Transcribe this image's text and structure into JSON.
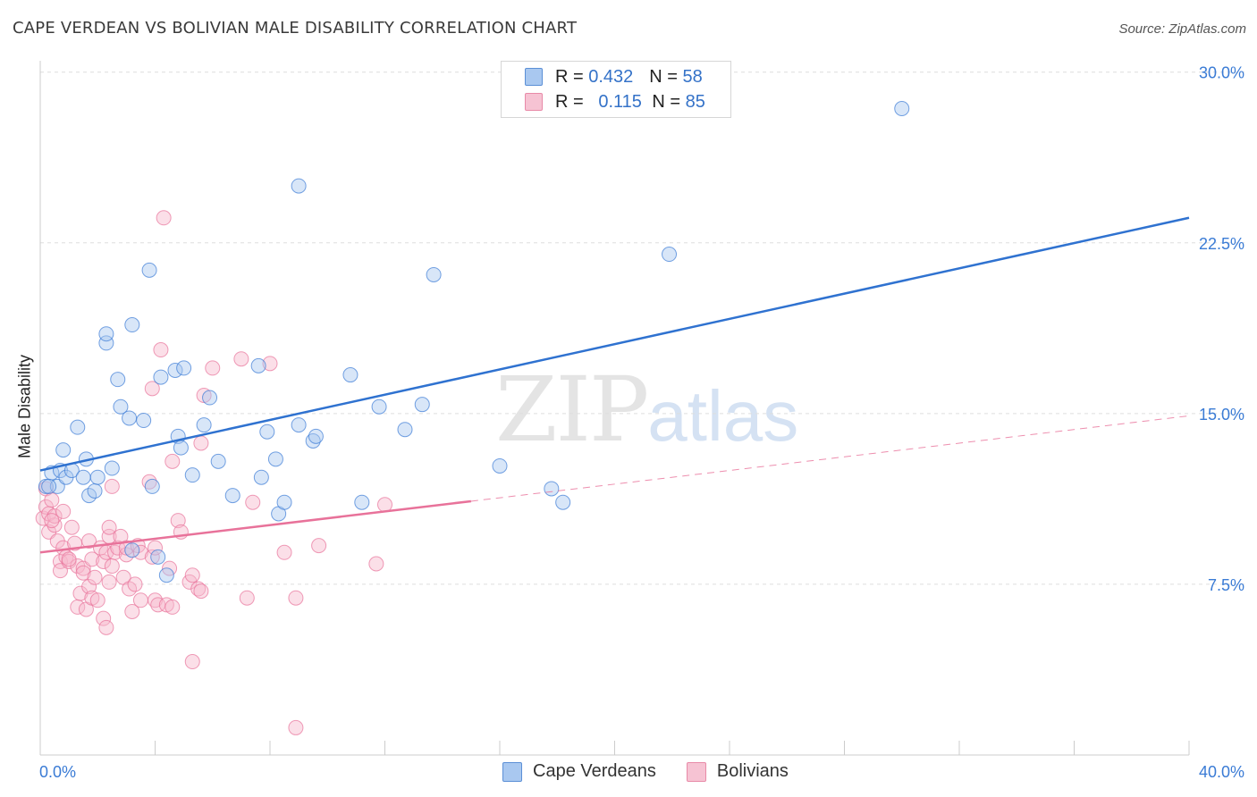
{
  "header": {
    "title": "CAPE VERDEAN VS BOLIVIAN MALE DISABILITY CORRELATION CHART",
    "source": "Source: ZipAtlas.com"
  },
  "watermark": {
    "zip": "ZIP",
    "atlas": "atlas"
  },
  "legend": {
    "r_label": "R =",
    "n_label": "N =",
    "series": [
      {
        "name": "Cape Verdeans",
        "r": "0.432",
        "n": "58",
        "color": "#a9c8f0"
      },
      {
        "name": "Bolivians",
        "r": "0.115",
        "n": "85",
        "color": "#f6b8cb"
      }
    ]
  },
  "chart_data": {
    "type": "scatter",
    "title": "CAPE VERDEAN VS BOLIVIAN MALE DISABILITY CORRELATION CHART",
    "xlabel": "",
    "ylabel": "Male Disability",
    "xlim": [
      0,
      40
    ],
    "ylim": [
      0,
      30.5
    ],
    "x_tick_labels": [
      "0.0%",
      "40.0%"
    ],
    "y_ticks": [
      7.5,
      15.0,
      22.5,
      30.0
    ],
    "y_tick_labels": [
      "7.5%",
      "15.0%",
      "22.5%",
      "30.0%"
    ],
    "grid": true,
    "series": [
      {
        "name": "Cape Verdeans",
        "color": "#3a7bd5",
        "fill": "#a9c8f0",
        "trend": {
          "x": [
            0,
            40
          ],
          "y": [
            12.5,
            23.6
          ],
          "dashed_from": null
        },
        "points": [
          [
            0.2,
            11.8
          ],
          [
            0.4,
            12.4
          ],
          [
            0.6,
            11.8
          ],
          [
            0.7,
            12.5
          ],
          [
            0.8,
            13.4
          ],
          [
            0.9,
            12.2
          ],
          [
            1.1,
            12.5
          ],
          [
            1.3,
            14.4
          ],
          [
            1.5,
            12.2
          ],
          [
            1.6,
            13.0
          ],
          [
            1.7,
            11.4
          ],
          [
            1.9,
            11.6
          ],
          [
            2.0,
            12.2
          ],
          [
            2.3,
            18.1
          ],
          [
            2.3,
            18.5
          ],
          [
            2.5,
            12.6
          ],
          [
            2.7,
            16.5
          ],
          [
            2.8,
            15.3
          ],
          [
            3.1,
            14.8
          ],
          [
            3.2,
            18.9
          ],
          [
            3.2,
            9.0
          ],
          [
            3.6,
            14.7
          ],
          [
            3.8,
            21.3
          ],
          [
            3.9,
            11.8
          ],
          [
            4.1,
            8.7
          ],
          [
            4.2,
            16.6
          ],
          [
            4.4,
            7.9
          ],
          [
            4.7,
            16.9
          ],
          [
            4.8,
            14.0
          ],
          [
            4.9,
            13.5
          ],
          [
            5.0,
            17.0
          ],
          [
            5.3,
            12.3
          ],
          [
            5.7,
            14.5
          ],
          [
            5.9,
            15.7
          ],
          [
            6.2,
            12.9
          ],
          [
            6.7,
            11.4
          ],
          [
            7.6,
            17.1
          ],
          [
            7.7,
            12.2
          ],
          [
            7.9,
            14.2
          ],
          [
            8.2,
            13.0
          ],
          [
            8.3,
            10.6
          ],
          [
            8.5,
            11.1
          ],
          [
            9.0,
            14.5
          ],
          [
            9.0,
            25.0
          ],
          [
            9.5,
            13.8
          ],
          [
            9.6,
            14.0
          ],
          [
            10.8,
            16.7
          ],
          [
            11.2,
            11.1
          ],
          [
            11.8,
            15.3
          ],
          [
            12.7,
            14.3
          ],
          [
            13.3,
            15.4
          ],
          [
            13.7,
            21.1
          ],
          [
            16.0,
            12.7
          ],
          [
            17.8,
            11.7
          ],
          [
            18.2,
            11.1
          ],
          [
            21.9,
            22.0
          ],
          [
            30.0,
            28.4
          ],
          [
            0.3,
            11.8
          ]
        ]
      },
      {
        "name": "Bolivians",
        "color": "#e8729a",
        "fill": "#f6b8cb",
        "trend": {
          "x": [
            0,
            40
          ],
          "y": [
            8.9,
            14.9
          ],
          "solid_until": 15
        },
        "points": [
          [
            0.1,
            10.4
          ],
          [
            0.2,
            10.9
          ],
          [
            0.2,
            11.7
          ],
          [
            0.3,
            10.6
          ],
          [
            0.3,
            9.8
          ],
          [
            0.4,
            11.2
          ],
          [
            0.5,
            10.1
          ],
          [
            0.5,
            10.5
          ],
          [
            0.6,
            9.4
          ],
          [
            0.7,
            8.5
          ],
          [
            0.7,
            8.1
          ],
          [
            0.8,
            9.1
          ],
          [
            0.8,
            10.7
          ],
          [
            0.9,
            8.7
          ],
          [
            1.0,
            8.5
          ],
          [
            1.1,
            10.0
          ],
          [
            1.2,
            9.3
          ],
          [
            1.3,
            8.3
          ],
          [
            1.3,
            6.5
          ],
          [
            1.4,
            7.1
          ],
          [
            1.5,
            8.2
          ],
          [
            1.5,
            8.0
          ],
          [
            1.6,
            6.4
          ],
          [
            1.7,
            9.4
          ],
          [
            1.7,
            7.4
          ],
          [
            1.8,
            6.9
          ],
          [
            1.8,
            8.6
          ],
          [
            1.9,
            7.8
          ],
          [
            2.0,
            6.8
          ],
          [
            2.1,
            9.1
          ],
          [
            2.2,
            8.5
          ],
          [
            2.2,
            6.0
          ],
          [
            2.3,
            8.9
          ],
          [
            2.3,
            5.6
          ],
          [
            2.4,
            7.6
          ],
          [
            2.4,
            9.6
          ],
          [
            2.4,
            10.0
          ],
          [
            2.5,
            8.3
          ],
          [
            2.5,
            11.8
          ],
          [
            2.6,
            8.9
          ],
          [
            2.7,
            9.1
          ],
          [
            2.8,
            9.6
          ],
          [
            2.9,
            7.8
          ],
          [
            3.0,
            8.8
          ],
          [
            3.0,
            9.1
          ],
          [
            3.1,
            7.3
          ],
          [
            3.2,
            6.3
          ],
          [
            3.3,
            7.5
          ],
          [
            3.4,
            9.2
          ],
          [
            3.5,
            8.9
          ],
          [
            3.5,
            6.8
          ],
          [
            3.8,
            12.0
          ],
          [
            3.9,
            16.1
          ],
          [
            3.9,
            8.7
          ],
          [
            4.0,
            6.8
          ],
          [
            4.0,
            9.1
          ],
          [
            4.1,
            6.6
          ],
          [
            4.2,
            17.8
          ],
          [
            4.3,
            23.6
          ],
          [
            4.4,
            6.6
          ],
          [
            4.5,
            8.2
          ],
          [
            4.6,
            6.5
          ],
          [
            4.6,
            12.9
          ],
          [
            4.8,
            10.3
          ],
          [
            4.9,
            9.8
          ],
          [
            5.2,
            7.6
          ],
          [
            5.3,
            7.9
          ],
          [
            5.3,
            4.1
          ],
          [
            5.5,
            7.3
          ],
          [
            5.6,
            7.2
          ],
          [
            5.6,
            13.7
          ],
          [
            5.7,
            15.8
          ],
          [
            6.0,
            17.0
          ],
          [
            7.0,
            17.4
          ],
          [
            7.2,
            6.9
          ],
          [
            7.4,
            11.1
          ],
          [
            8.0,
            17.2
          ],
          [
            8.5,
            8.9
          ],
          [
            8.9,
            6.9
          ],
          [
            8.9,
            1.2
          ],
          [
            9.7,
            9.2
          ],
          [
            11.7,
            8.4
          ],
          [
            12.0,
            11.0
          ],
          [
            0.4,
            10.3
          ],
          [
            1.0,
            8.6
          ]
        ]
      }
    ]
  }
}
